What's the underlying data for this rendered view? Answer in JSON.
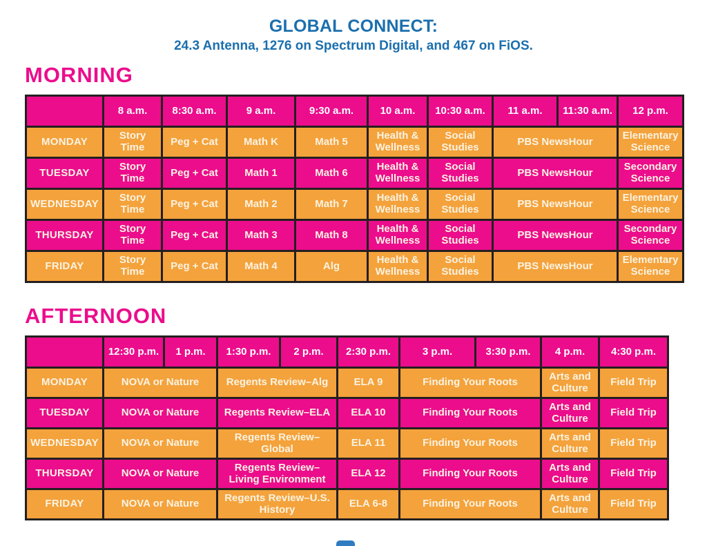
{
  "header": {
    "title": "GLOBAL CONNECT:",
    "subtitle": "24.3 Antenna, 1276 on Spectrum Digital, and 467 on FiOS."
  },
  "colors": {
    "pink": "#EB0D8C",
    "orange": "#F4A23B",
    "blue": "#1B6FAE",
    "border": "#231F20",
    "cell_text": "#FBF3E2"
  },
  "morning": {
    "title": "MORNING",
    "times": [
      "8 a.m.",
      "8:30 a.m.",
      "9 a.m.",
      "9:30 a.m.",
      "10 a.m.",
      "10:30 a.m.",
      "11 a.m.",
      "11:30 a.m.",
      "12 p.m."
    ],
    "rows": [
      {
        "day": "MONDAY",
        "tone": "orange",
        "cells": [
          {
            "label": "Story Time",
            "span": 1
          },
          {
            "label": "Peg + Cat",
            "span": 1
          },
          {
            "label": "Math K",
            "span": 1
          },
          {
            "label": "Math 5",
            "span": 1
          },
          {
            "label": "Health & Wellness",
            "span": 1
          },
          {
            "label": "Social Studies",
            "span": 1
          },
          {
            "label": "PBS NewsHour",
            "span": 2
          },
          {
            "label": "Elementary Science",
            "span": 1
          }
        ]
      },
      {
        "day": "TUESDAY",
        "tone": "pink",
        "cells": [
          {
            "label": "Story Time",
            "span": 1
          },
          {
            "label": "Peg + Cat",
            "span": 1
          },
          {
            "label": "Math 1",
            "span": 1
          },
          {
            "label": "Math 6",
            "span": 1
          },
          {
            "label": "Health & Wellness",
            "span": 1
          },
          {
            "label": "Social Studies",
            "span": 1
          },
          {
            "label": "PBS NewsHour",
            "span": 2
          },
          {
            "label": "Secondary Science",
            "span": 1
          }
        ]
      },
      {
        "day": "WEDNESDAY",
        "tone": "orange",
        "cells": [
          {
            "label": "Story Time",
            "span": 1
          },
          {
            "label": "Peg + Cat",
            "span": 1
          },
          {
            "label": "Math 2",
            "span": 1
          },
          {
            "label": "Math 7",
            "span": 1
          },
          {
            "label": "Health & Wellness",
            "span": 1
          },
          {
            "label": "Social Studies",
            "span": 1
          },
          {
            "label": "PBS NewsHour",
            "span": 2
          },
          {
            "label": "Elementary Science",
            "span": 1
          }
        ]
      },
      {
        "day": "THURSDAY",
        "tone": "pink",
        "cells": [
          {
            "label": "Story Time",
            "span": 1
          },
          {
            "label": "Peg + Cat",
            "span": 1
          },
          {
            "label": "Math 3",
            "span": 1
          },
          {
            "label": "Math 8",
            "span": 1
          },
          {
            "label": "Health & Wellness",
            "span": 1
          },
          {
            "label": "Social Studies",
            "span": 1
          },
          {
            "label": "PBS NewsHour",
            "span": 2
          },
          {
            "label": "Secondary Science",
            "span": 1
          }
        ]
      },
      {
        "day": "FRIDAY",
        "tone": "orange",
        "cells": [
          {
            "label": "Story Time",
            "span": 1
          },
          {
            "label": "Peg + Cat",
            "span": 1
          },
          {
            "label": "Math 4",
            "span": 1
          },
          {
            "label": "Alg",
            "span": 1
          },
          {
            "label": "Health & Wellness",
            "span": 1
          },
          {
            "label": "Social Studies",
            "span": 1
          },
          {
            "label": "PBS NewsHour",
            "span": 2
          },
          {
            "label": "Elementary Science",
            "span": 1
          }
        ]
      }
    ]
  },
  "afternoon": {
    "title": "AFTERNOON",
    "times": [
      "12:30 p.m.",
      "1 p.m.",
      "1:30 p.m.",
      "2 p.m.",
      "2:30 p.m.",
      "3 p.m.",
      "3:30 p.m.",
      "4 p.m.",
      "4:30 p.m."
    ],
    "rows": [
      {
        "day": "MONDAY",
        "tone": "orange",
        "cells": [
          {
            "label": "NOVA or Nature",
            "span": 2
          },
          {
            "label": "Regents Review–Alg",
            "span": 2
          },
          {
            "label": "ELA 9",
            "span": 1
          },
          {
            "label": "Finding Your Roots",
            "span": 2
          },
          {
            "label": "Arts and Culture",
            "span": 1
          },
          {
            "label": "Field Trip",
            "span": 1
          }
        ]
      },
      {
        "day": "TUESDAY",
        "tone": "pink",
        "cells": [
          {
            "label": "NOVA or Nature",
            "span": 2
          },
          {
            "label": "Regents Review–ELA",
            "span": 2
          },
          {
            "label": "ELA 10",
            "span": 1
          },
          {
            "label": "Finding Your Roots",
            "span": 2
          },
          {
            "label": "Arts and Culture",
            "span": 1
          },
          {
            "label": "Field Trip",
            "span": 1
          }
        ]
      },
      {
        "day": "WEDNESDAY",
        "tone": "orange",
        "cells": [
          {
            "label": "NOVA or Nature",
            "span": 2
          },
          {
            "label": "Regents Review–Global",
            "span": 2
          },
          {
            "label": "ELA 11",
            "span": 1
          },
          {
            "label": "Finding Your Roots",
            "span": 2
          },
          {
            "label": "Arts and Culture",
            "span": 1
          },
          {
            "label": "Field Trip",
            "span": 1
          }
        ]
      },
      {
        "day": "THURSDAY",
        "tone": "pink",
        "cells": [
          {
            "label": "NOVA or Nature",
            "span": 2
          },
          {
            "label": "Regents Review–Living Environment",
            "span": 2
          },
          {
            "label": "ELA 12",
            "span": 1
          },
          {
            "label": "Finding Your Roots",
            "span": 2
          },
          {
            "label": "Arts and Culture",
            "span": 1
          },
          {
            "label": "Field Trip",
            "span": 1
          }
        ]
      },
      {
        "day": "FRIDAY",
        "tone": "orange",
        "cells": [
          {
            "label": "NOVA or Nature",
            "span": 2
          },
          {
            "label": "Regents Review–U.S. History",
            "span": 2
          },
          {
            "label": "ELA 6-8",
            "span": 1
          },
          {
            "label": "Finding Your Roots",
            "span": 2
          },
          {
            "label": "Arts and Culture",
            "span": 1
          },
          {
            "label": "Field Trip",
            "span": 1
          }
        ]
      }
    ]
  }
}
